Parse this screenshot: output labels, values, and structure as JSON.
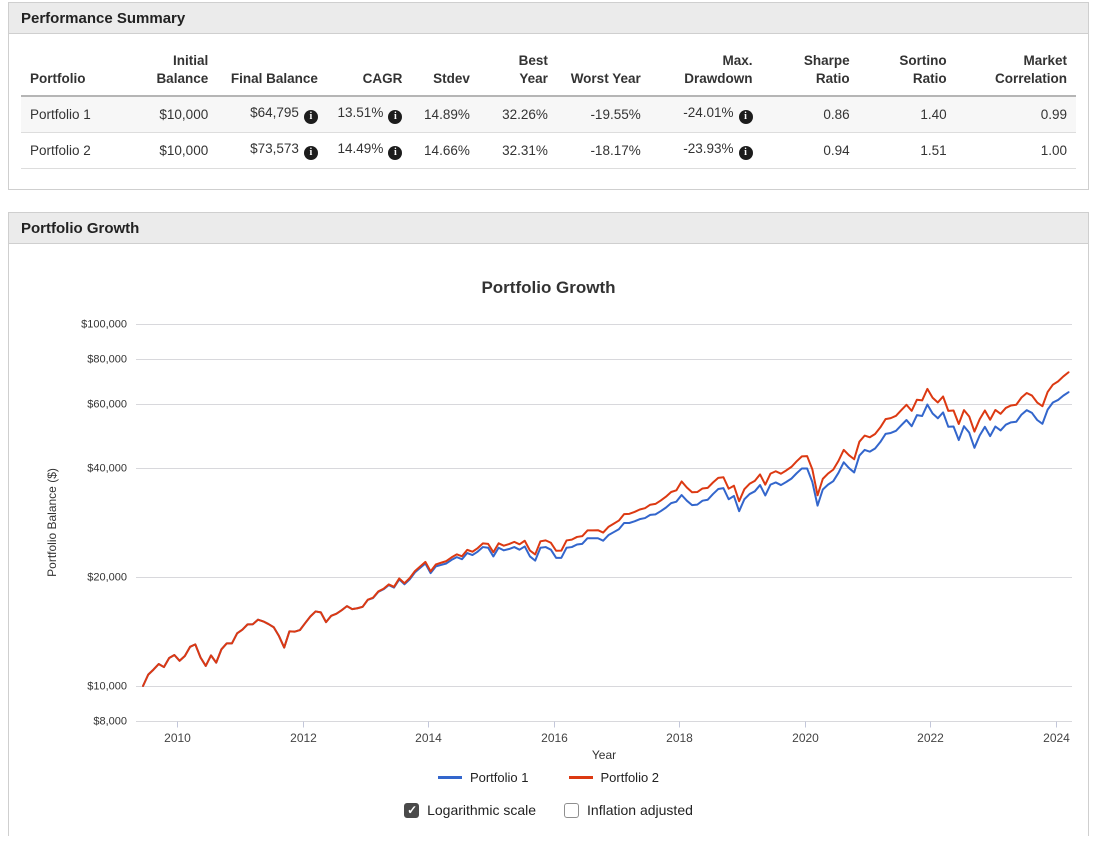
{
  "panels": {
    "performance": {
      "title": "Performance Summary"
    },
    "growth": {
      "title": "Portfolio Growth"
    }
  },
  "summary_table": {
    "columns": [
      "Portfolio",
      "Initial Balance",
      "Final Balance",
      "CAGR",
      "Stdev",
      "Best Year",
      "Worst Year",
      "Max. Drawdown",
      "Sharpe Ratio",
      "Sortino Ratio",
      "Market Correlation"
    ],
    "rows": [
      {
        "cells": [
          "Portfolio 1",
          "$10,000",
          "$64,795",
          "13.51%",
          "14.89%",
          "32.26%",
          "-19.55%",
          "-24.01%",
          "0.86",
          "1.40",
          "0.99"
        ]
      },
      {
        "cells": [
          "Portfolio 2",
          "$10,000",
          "$73,573",
          "14.49%",
          "14.66%",
          "32.31%",
          "-18.17%",
          "-23.93%",
          "0.94",
          "1.51",
          "1.00"
        ]
      }
    ],
    "info_icon_glyph": "i"
  },
  "controls": {
    "logarithmic": {
      "label": "Logarithmic scale",
      "checked": true
    },
    "inflation": {
      "label": "Inflation adjusted",
      "checked": false
    }
  },
  "chart_data": {
    "type": "line",
    "title": "Portfolio Growth",
    "xlabel": "Year",
    "ylabel": "Portfolio Balance ($)",
    "y_scale": "log",
    "legend_position": "bottom",
    "grid": true,
    "x_range": [
      2009.38,
      2024.3
    ],
    "x_ticks": [
      2010,
      2012,
      2014,
      2016,
      2018,
      2020,
      2022,
      2024
    ],
    "y_gridlines": [
      {
        "value": 100000,
        "label": "$100,000"
      },
      {
        "value": 80000,
        "label": "$80,000"
      },
      {
        "value": 60000,
        "label": "$60,000"
      },
      {
        "value": 40000,
        "label": "$40,000"
      },
      {
        "value": 20000,
        "label": "$20,000"
      },
      {
        "value": 10000,
        "label": "$10,000"
      },
      {
        "value": 8000,
        "label": "$8,000"
      }
    ],
    "x_start": 2009.4583,
    "x_step_years": 0.0833333,
    "series": [
      {
        "name": "Portfolio 1",
        "color": "#3366cc",
        "values": [
          10000,
          10750,
          11100,
          11500,
          11280,
          11950,
          12180,
          11740,
          12100,
          12830,
          13030,
          11990,
          11360,
          12150,
          11600,
          12630,
          13110,
          13110,
          13980,
          14310,
          14800,
          14810,
          15250,
          15080,
          14830,
          14530,
          13740,
          12770,
          14160,
          14130,
          14270,
          14910,
          15560,
          16070,
          15970,
          15010,
          15630,
          15840,
          16200,
          16620,
          16310,
          16400,
          16550,
          17300,
          17500,
          18200,
          18500,
          19000,
          18700,
          19700,
          19100,
          19700,
          20600,
          21200,
          21800,
          20500,
          21400,
          21600,
          21800,
          22300,
          22700,
          22400,
          23300,
          23000,
          23500,
          24200,
          24100,
          22800,
          24100,
          23700,
          23900,
          24200,
          23800,
          24300,
          22800,
          22200,
          24100,
          24200,
          23800,
          22600,
          22600,
          24100,
          24200,
          24600,
          24700,
          25600,
          25600,
          25600,
          25200,
          26100,
          26600,
          27100,
          28200,
          28200,
          28500,
          28900,
          29100,
          29700,
          29800,
          30400,
          31100,
          32000,
          32300,
          33700,
          32500,
          31600,
          31700,
          32500,
          32700,
          33900,
          35000,
          35200,
          32800,
          33500,
          30400,
          32800,
          33900,
          34500,
          35900,
          33600,
          36000,
          36500,
          35900,
          36600,
          37400,
          38700,
          39900,
          39900,
          36600,
          31500,
          34900,
          36000,
          36800,
          38800,
          41500,
          40000,
          38900,
          43300,
          44900,
          44400,
          45300,
          47200,
          49700,
          50000,
          50700,
          52500,
          54300,
          52200,
          56000,
          55700,
          59900,
          56600,
          54900,
          57000,
          52000,
          52100,
          47800,
          52200,
          50100,
          45500,
          49200,
          52000,
          49000,
          52100,
          50800,
          52700,
          53500,
          53700,
          56200,
          57800,
          56800,
          54300,
          53000,
          58000,
          60700,
          61700,
          63400,
          64795
        ]
      },
      {
        "name": "Portfolio 2",
        "color": "#dc3912",
        "values": [
          10000,
          10750,
          11100,
          11500,
          11280,
          11950,
          12180,
          11740,
          12100,
          12830,
          13030,
          11990,
          11360,
          12150,
          11600,
          12630,
          13110,
          13110,
          13980,
          14310,
          14800,
          14810,
          15250,
          15080,
          14830,
          14530,
          13740,
          12770,
          14160,
          14130,
          14270,
          14910,
          15560,
          16070,
          15970,
          15010,
          15630,
          15840,
          16200,
          16620,
          16310,
          16400,
          16550,
          17320,
          17540,
          18250,
          18560,
          19080,
          18790,
          19820,
          19230,
          19860,
          20770,
          21390,
          22020,
          20730,
          21670,
          21900,
          22130,
          22660,
          23100,
          22820,
          23770,
          23490,
          24030,
          24780,
          24700,
          23410,
          24780,
          24410,
          24660,
          25010,
          24630,
          25190,
          23670,
          23090,
          25100,
          25250,
          24870,
          23640,
          23660,
          25240,
          25370,
          25810,
          25940,
          26900,
          26920,
          26940,
          26540,
          27510,
          28060,
          28640,
          29840,
          29890,
          30260,
          30730,
          30990,
          31680,
          31840,
          32530,
          33330,
          34350,
          34720,
          36730,
          35350,
          34300,
          34340,
          35130,
          35270,
          36490,
          37590,
          37730,
          35080,
          35750,
          32380,
          34970,
          36190,
          36870,
          38410,
          35990,
          38610,
          39190,
          38590,
          39390,
          40300,
          41750,
          43090,
          43170,
          39670,
          33640,
          37340,
          38630,
          39600,
          41870,
          44900,
          43400,
          42300,
          47310,
          49170,
          48650,
          49680,
          51800,
          54590,
          54960,
          55770,
          57790,
          59820,
          57550,
          61780,
          61500,
          66190,
          62570,
          60710,
          63060,
          57550,
          57680,
          52940,
          57830,
          55530,
          50450,
          54570,
          57700,
          54390,
          57870,
          56470,
          58630,
          59560,
          59830,
          62660,
          64490,
          63430,
          60680,
          59270,
          64910,
          67980,
          69410,
          71640,
          73573
        ]
      }
    ]
  }
}
